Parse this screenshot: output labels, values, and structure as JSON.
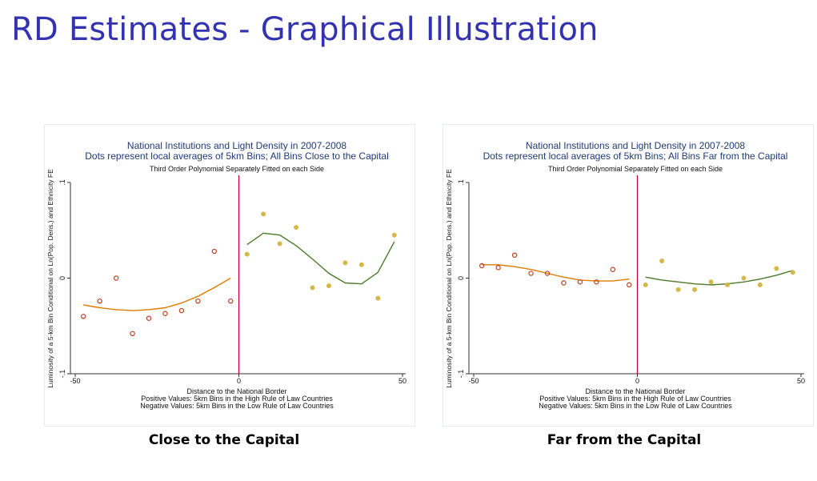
{
  "slide": {
    "title": "RD Estimates - Graphical Illustration"
  },
  "captions": {
    "left": "Close to the Capital",
    "right": "Far from the Capital"
  },
  "colors": {
    "title": "#3333b2",
    "left_side": "#e07b00",
    "right_side": "#4a7a2a",
    "dots_right": "#d4b84a",
    "dots_left": "#b9401c",
    "cutoff": "#c0003c",
    "plot_title": "#1f3a78"
  },
  "chart_data": [
    {
      "type": "scatter",
      "title": "National Institutions and Light Density in 2007-2008",
      "subtitle": "Dots represent local averages of 5km Bins; All Bins Close to the Capital",
      "note": "Third Order Polynomial Separately Fitted on each Side",
      "ylabel": "Luminosity of a 5-km Bin Conditional on Ln(Pop. Dens.) and Ethnicity FE",
      "xlabel": "Distance to the National Border",
      "xlabel_lines": [
        "Positive  Values: 5km Bins in the High Rule of Law Countries",
        "Negative Values: 5km Bins in the Low Rule of Law Countries"
      ],
      "xlim": [
        -50,
        50
      ],
      "ylim": [
        -0.1,
        0.1
      ],
      "xticks": [
        "-50",
        "0",
        "50"
      ],
      "yticks": [
        "-.1",
        "0",
        ".1"
      ],
      "series": [
        {
          "x": [
            -47.5,
            -42.5,
            -37.5,
            -32.5,
            -27.5,
            -22.5,
            -17.5,
            -12.5,
            -7.5,
            -2.5
          ],
          "y": [
            -0.04,
            -0.024,
            0.0,
            -0.058,
            -0.042,
            -0.037,
            -0.034,
            -0.024,
            0.028,
            -0.024
          ]
        },
        {
          "x": [
            2.5,
            7.5,
            12.5,
            17.5,
            22.5,
            27.5,
            32.5,
            37.5,
            42.5,
            47.5
          ],
          "y": [
            0.025,
            0.067,
            0.036,
            0.053,
            -0.01,
            -0.008,
            0.016,
            0.014,
            -0.021,
            0.045
          ]
        },
        {
          "x": [
            -47.5,
            -42.5,
            -37.5,
            -32.5,
            -27.5,
            -22.5,
            -17.5,
            -12.5,
            -7.5,
            -2.5
          ],
          "y": [
            -0.028,
            -0.031,
            -0.033,
            -0.034,
            -0.033,
            -0.031,
            -0.026,
            -0.019,
            -0.01,
            0.0
          ]
        },
        {
          "x": [
            2.5,
            7.5,
            12.5,
            17.5,
            22.5,
            27.5,
            32.5,
            37.5,
            42.5,
            47.5
          ],
          "y": [
            0.035,
            0.047,
            0.045,
            0.034,
            0.02,
            0.005,
            -0.005,
            -0.006,
            0.006,
            0.038
          ]
        }
      ]
    },
    {
      "type": "scatter",
      "title": "National Institutions and Light Density in 2007-2008",
      "subtitle": "Dots represent local averages of 5km Bins; All Bins Far from the Capital",
      "note": "Third Order Polynomial Separately Fitted on each Side",
      "ylabel": "Luminosity of a 5-km Bin Conditional on Ln(Pop. Dens.) and Ethnicity FE",
      "xlabel": "Distance to the National Border",
      "xlabel_lines": [
        "Positive  Values: 5km Bins in the High Rule of Law Countries",
        "Negative Values: 5km Bins in the Low Rule of Law Countries"
      ],
      "xlim": [
        -50,
        50
      ],
      "ylim": [
        -0.1,
        0.1
      ],
      "xticks": [
        "-50",
        "0",
        "50"
      ],
      "yticks": [
        "-.1",
        "0",
        ".1"
      ],
      "series": [
        {
          "x": [
            -47.5,
            -42.5,
            -37.5,
            -32.5,
            -27.5,
            -22.5,
            -17.5,
            -12.5,
            -7.5,
            -2.5
          ],
          "y": [
            0.013,
            0.011,
            0.024,
            0.005,
            0.005,
            -0.005,
            -0.004,
            -0.004,
            0.009,
            -0.007
          ]
        },
        {
          "x": [
            2.5,
            7.5,
            12.5,
            17.5,
            22.5,
            27.5,
            32.5,
            37.5,
            42.5,
            47.5
          ],
          "y": [
            -0.007,
            0.018,
            -0.012,
            -0.012,
            -0.004,
            -0.007,
            0.0,
            -0.007,
            0.01,
            0.006
          ]
        },
        {
          "x": [
            -47.5,
            -42.5,
            -37.5,
            -32.5,
            -27.5,
            -22.5,
            -17.5,
            -12.5,
            -7.5,
            -2.5
          ],
          "y": [
            0.014,
            0.014,
            0.012,
            0.009,
            0.005,
            0.001,
            -0.002,
            -0.003,
            -0.003,
            -0.001
          ]
        },
        {
          "x": [
            2.5,
            7.5,
            12.5,
            17.5,
            22.5,
            27.5,
            32.5,
            37.5,
            42.5,
            47.5
          ],
          "y": [
            0.001,
            -0.002,
            -0.004,
            -0.006,
            -0.007,
            -0.006,
            -0.004,
            -0.001,
            0.003,
            0.008
          ]
        }
      ]
    }
  ]
}
